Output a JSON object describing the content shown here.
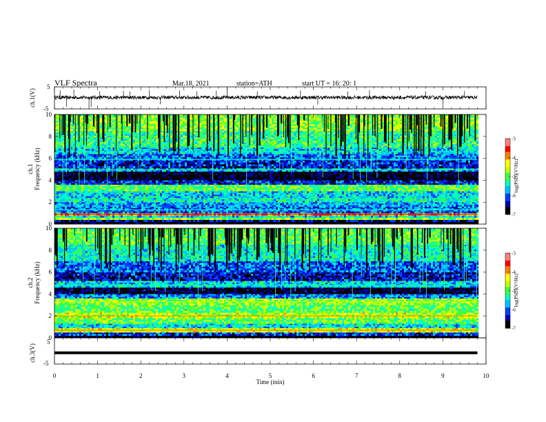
{
  "header": {
    "title": "VLF  Spectra",
    "date": "Mar.18, 2021",
    "station": "station=ATH",
    "start": "start  UT  =    16: 20: 1"
  },
  "chart_data": [
    {
      "type": "line",
      "panel": "ch1-waveform",
      "ylabel": "ch.1(V)",
      "ylim": [
        -5,
        5
      ],
      "y_ticks": [
        "5",
        "-5"
      ],
      "x_range": [
        0,
        9.8
      ],
      "baseline": 0.2,
      "series": [
        {
          "name": "",
          "values_note": ""
        }
      ],
      "spikes": [
        {
          "t": 0.13,
          "v": 3.5
        },
        {
          "t": 0.28,
          "v": -4.0
        },
        {
          "t": 0.45,
          "v": 3.8
        },
        {
          "t": 0.8,
          "v": -4.5
        },
        {
          "t": 0.85,
          "v": -4.2
        },
        {
          "t": 1.05,
          "v": 3.0
        },
        {
          "t": 1.6,
          "v": 3.2
        },
        {
          "t": 1.75,
          "v": 2.9
        },
        {
          "t": 2.2,
          "v": 3.6
        },
        {
          "t": 2.45,
          "v": -2.9
        },
        {
          "t": 2.9,
          "v": 3.4
        },
        {
          "t": 3.3,
          "v": 3.0
        },
        {
          "t": 3.75,
          "v": 3.2
        },
        {
          "t": 4.0,
          "v": 4.8
        },
        {
          "t": 4.7,
          "v": 3.0
        },
        {
          "t": 5.7,
          "v": 3.4
        },
        {
          "t": 6.1,
          "v": -3.0
        },
        {
          "t": 6.8,
          "v": 3.0
        },
        {
          "t": 7.3,
          "v": 3.5
        },
        {
          "t": 8.6,
          "v": 3.0
        },
        {
          "t": 9.0,
          "v": -3.3
        },
        {
          "t": 9.5,
          "v": 3.1
        }
      ]
    },
    {
      "type": "heatmap",
      "panel": "ch1-spectrogram",
      "ylabel_top": "ch.1",
      "ylabel": "Frequency  (kHz)",
      "ylim": [
        0,
        10
      ],
      "y_ticks": [
        "0",
        "2",
        "4",
        "6",
        "8",
        "10"
      ],
      "x_range": [
        0,
        9.8
      ],
      "colorbar": {
        "label": "log(PSD)(V²/Hz)",
        "range": [
          -7,
          -3
        ],
        "ticks": [
          "-3",
          "-4",
          "-5",
          "-6",
          "-7"
        ]
      },
      "bands": [
        {
          "f": [
            0.0,
            0.2
          ],
          "level": -7.0
        },
        {
          "f": [
            0.2,
            0.4
          ],
          "level": -6.5
        },
        {
          "f": [
            0.4,
            0.6
          ],
          "level": -4.7
        },
        {
          "f": [
            0.6,
            0.8
          ],
          "level": -5.5
        },
        {
          "f": [
            0.8,
            1.0
          ],
          "level": -3.9
        },
        {
          "f": [
            1.0,
            1.6
          ],
          "level": -6.0
        },
        {
          "f": [
            1.6,
            2.0
          ],
          "level": -5.8
        },
        {
          "f": [
            2.0,
            2.4
          ],
          "level": -5.4
        },
        {
          "f": [
            2.4,
            3.0
          ],
          "level": -5.6
        },
        {
          "f": [
            3.0,
            3.6
          ],
          "level": -5.0
        },
        {
          "f": [
            3.6,
            4.0
          ],
          "level": -6.3
        },
        {
          "f": [
            4.0,
            4.8
          ],
          "level": -6.9
        },
        {
          "f": [
            4.8,
            5.1
          ],
          "level": -5.8
        },
        {
          "f": [
            5.1,
            5.8
          ],
          "level": -6.3
        },
        {
          "f": [
            5.8,
            6.4
          ],
          "level": -6.0
        },
        {
          "f": [
            6.4,
            7.0
          ],
          "level": -5.6
        },
        {
          "f": [
            7.0,
            8.5
          ],
          "level": -5.2
        },
        {
          "f": [
            8.5,
            10.0
          ],
          "level": -4.8
        }
      ],
      "lines": [
        {
          "f": 0.9,
          "level": -3.5
        },
        {
          "f": 1.3,
          "level": -5.2
        },
        {
          "f": 4.95,
          "level": -5.0
        },
        {
          "f": 5.9,
          "level": -5.3
        },
        {
          "f": 6.6,
          "level": -5.3
        }
      ]
    },
    {
      "type": "heatmap",
      "panel": "ch2-spectrogram",
      "ylabel_top": "ch.2",
      "ylabel": "Frequency  (kHz)",
      "ylim": [
        0,
        10
      ],
      "y_ticks": [
        "0",
        "2",
        "4",
        "6",
        "8",
        "10"
      ],
      "x_range": [
        0,
        9.8
      ],
      "colorbar": {
        "label": "log(PSD)(V²/Hz)",
        "range": [
          -7,
          -3
        ],
        "ticks": [
          "-3",
          "-4",
          "-5",
          "-6",
          "-7"
        ]
      },
      "bands": [
        {
          "f": [
            0.0,
            0.2
          ],
          "level": -7.0
        },
        {
          "f": [
            0.2,
            0.5
          ],
          "level": -6.2
        },
        {
          "f": [
            0.5,
            0.9
          ],
          "level": -4.5
        },
        {
          "f": [
            0.9,
            1.3
          ],
          "level": -5.5
        },
        {
          "f": [
            1.3,
            1.8
          ],
          "level": -5.0
        },
        {
          "f": [
            1.8,
            2.3
          ],
          "level": -4.6
        },
        {
          "f": [
            2.3,
            3.0
          ],
          "level": -5.0
        },
        {
          "f": [
            3.0,
            3.6
          ],
          "level": -4.8
        },
        {
          "f": [
            3.6,
            4.0
          ],
          "level": -5.9
        },
        {
          "f": [
            4.0,
            4.6
          ],
          "level": -6.8
        },
        {
          "f": [
            4.6,
            5.2
          ],
          "level": -5.6
        },
        {
          "f": [
            5.2,
            6.0
          ],
          "level": -6.4
        },
        {
          "f": [
            6.0,
            7.0
          ],
          "level": -6.0
        },
        {
          "f": [
            7.0,
            8.5
          ],
          "level": -5.4
        },
        {
          "f": [
            8.5,
            10.0
          ],
          "level": -5.0
        }
      ],
      "lines": [
        {
          "f": 2.0,
          "level": -4.0
        },
        {
          "f": 0.7,
          "level": -3.8
        },
        {
          "f": 4.8,
          "level": -5.2
        },
        {
          "f": 3.3,
          "level": -4.5
        }
      ]
    },
    {
      "type": "line",
      "panel": "ch3-waveform",
      "ylabel": "ch.3(V)",
      "ylim": [
        -5,
        5
      ],
      "y_ticks": [
        "5",
        "-5"
      ],
      "x_range": [
        0,
        9.8
      ],
      "baseline": -0.7,
      "series": [
        {
          "name": "",
          "values_note": ""
        }
      ]
    }
  ],
  "x_axis": {
    "label": "Time  (min)",
    "range": [
      0,
      10
    ],
    "ticks": [
      "0",
      "1",
      "2",
      "3",
      "4",
      "5",
      "6",
      "7",
      "8",
      "9",
      "10"
    ]
  },
  "colors": {
    "scale": [
      "#000000",
      "#0000b0",
      "#0040ff",
      "#00c0ff",
      "#00ffc0",
      "#40ff40",
      "#c0ff00",
      "#ffff00",
      "#ff8000",
      "#ff0000",
      "#ff8080",
      "#ffffff"
    ]
  }
}
